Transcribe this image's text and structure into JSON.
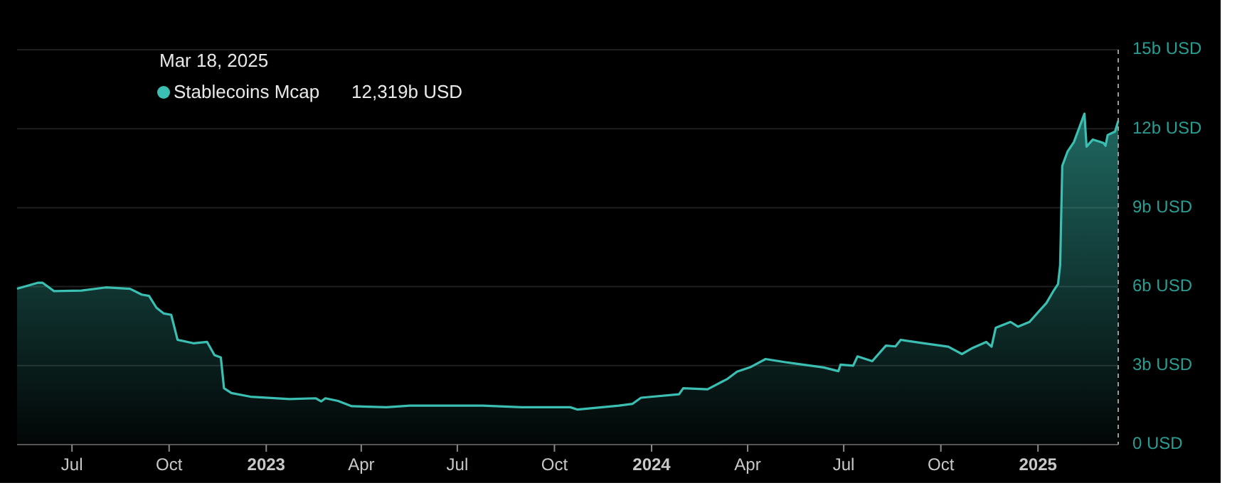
{
  "chart_data": {
    "type": "area",
    "x": [
      "2022-05-10",
      "2022-05-30",
      "2022-06-03",
      "2022-06-14",
      "2022-07-10",
      "2022-08-02",
      "2022-08-25",
      "2022-09-05",
      "2022-09-12",
      "2022-09-19",
      "2022-09-26",
      "2022-10-03",
      "2022-10-09",
      "2022-10-24",
      "2022-11-06",
      "2022-11-13",
      "2022-11-19",
      "2022-11-22",
      "2022-11-29",
      "2022-12-17",
      "2023-01-23",
      "2023-02-17",
      "2023-02-22",
      "2023-02-26",
      "2023-03-10",
      "2023-03-23",
      "2023-04-25",
      "2023-05-17",
      "2023-07-25",
      "2023-08-31",
      "2023-10-16",
      "2023-10-23",
      "2023-12-01",
      "2023-12-14",
      "2023-12-22",
      "2024-01-27",
      "2024-01-31",
      "2024-02-23",
      "2024-03-13",
      "2024-03-22",
      "2024-04-04",
      "2024-04-18",
      "2024-05-07",
      "2024-05-16",
      "2024-06-12",
      "2024-06-26",
      "2024-06-28",
      "2024-07-10",
      "2024-07-14",
      "2024-07-28",
      "2024-08-10",
      "2024-08-19",
      "2024-08-24",
      "2024-09-15",
      "2024-10-08",
      "2024-10-21",
      "2024-10-31",
      "2024-11-13",
      "2024-11-18",
      "2024-11-22",
      "2024-12-06",
      "2024-12-13",
      "2024-12-24",
      "2025-01-02",
      "2025-01-09",
      "2025-01-16",
      "2025-01-20",
      "2025-01-22",
      "2025-01-24",
      "2025-01-29",
      "2025-02-04",
      "2025-02-09",
      "2025-02-14",
      "2025-02-16",
      "2025-02-22",
      "2025-03-04",
      "2025-03-06",
      "2025-03-08",
      "2025-03-15",
      "2025-03-18"
    ],
    "series": [
      {
        "name": "Stablecoins Mcap",
        "color": "#3bbfb2",
        "values": [
          5.92,
          6.15,
          6.15,
          5.83,
          5.85,
          5.97,
          5.92,
          5.7,
          5.65,
          5.2,
          4.98,
          4.93,
          3.98,
          3.85,
          3.9,
          3.4,
          3.31,
          2.14,
          1.96,
          1.82,
          1.73,
          1.76,
          1.64,
          1.76,
          1.66,
          1.46,
          1.42,
          1.48,
          1.48,
          1.42,
          1.42,
          1.33,
          1.48,
          1.55,
          1.78,
          1.91,
          2.14,
          2.1,
          2.5,
          2.77,
          2.95,
          3.25,
          3.13,
          3.08,
          2.93,
          2.79,
          3.04,
          3.0,
          3.35,
          3.17,
          3.76,
          3.73,
          3.98,
          3.85,
          3.72,
          3.44,
          3.67,
          3.9,
          3.72,
          4.44,
          4.66,
          4.48,
          4.66,
          5.07,
          5.38,
          5.86,
          6.1,
          6.82,
          10.59,
          11.13,
          11.49,
          12.03,
          12.57,
          11.32,
          11.59,
          11.46,
          11.35,
          11.76,
          11.89,
          12.3
        ]
      }
    ],
    "xlim": [
      "2022-05-10",
      "2025-03-18"
    ],
    "xticks": [
      {
        "value": "2022-07-01",
        "label": "Jul"
      },
      {
        "value": "2022-10-01",
        "label": "Oct"
      },
      {
        "value": "2023-01-01",
        "label": "2023"
      },
      {
        "value": "2023-04-01",
        "label": "Apr"
      },
      {
        "value": "2023-07-01",
        "label": "Jul"
      },
      {
        "value": "2023-10-01",
        "label": "Oct"
      },
      {
        "value": "2024-01-01",
        "label": "2024"
      },
      {
        "value": "2024-04-01",
        "label": "Apr"
      },
      {
        "value": "2024-07-01",
        "label": "Jul"
      },
      {
        "value": "2024-10-01",
        "label": "Oct"
      },
      {
        "value": "2025-01-01",
        "label": "2025"
      }
    ],
    "ylim": [
      0,
      15
    ],
    "yticks": [
      {
        "value": 0,
        "label": "0 USD"
      },
      {
        "value": 3,
        "label": "3b USD"
      },
      {
        "value": 6,
        "label": "6b USD"
      },
      {
        "value": 9,
        "label": "9b USD"
      },
      {
        "value": 12,
        "label": "12b USD"
      },
      {
        "value": 15,
        "label": "15b USD"
      }
    ],
    "grid": "y",
    "legend": "top left",
    "ref_lines": [
      {
        "axis": "x",
        "value": "2025-03-18",
        "line_style": "dashed",
        "color": "#9a9a9a"
      }
    ],
    "annotations": [
      "Mar 18, 2025",
      "12,319b USD"
    ]
  }
}
